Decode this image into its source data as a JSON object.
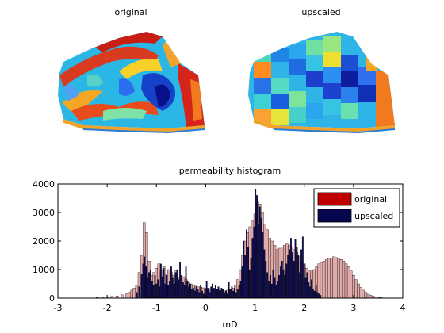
{
  "panels": {
    "left_title": "original",
    "right_title": "upscaled"
  },
  "colors": {
    "original_hist": "#e3aaaa",
    "upscaled_hist": "#0a0a5a",
    "legend_original": "#c00000",
    "legend_upscaled": "#06064e"
  },
  "chart_data": {
    "type": "bar",
    "title": "permeability histogram",
    "xlabel": "mD",
    "ylabel": "",
    "xlim": [
      -3,
      4
    ],
    "ylim": [
      0,
      4000
    ],
    "xticks": [
      "-3",
      "-2",
      "-1",
      "0",
      "1",
      "2",
      "3",
      "4"
    ],
    "yticks": [
      "0",
      "1000",
      "2000",
      "3000",
      "4000"
    ],
    "legend": {
      "position": "top-right",
      "entries": [
        "original",
        "upscaled"
      ]
    },
    "series": [
      {
        "name": "original",
        "points": [
          [
            -2.2,
            20
          ],
          [
            -2.1,
            30
          ],
          [
            -2.0,
            40
          ],
          [
            -1.9,
            60
          ],
          [
            -1.8,
            80
          ],
          [
            -1.7,
            120
          ],
          [
            -1.6,
            150
          ],
          [
            -1.55,
            200
          ],
          [
            -1.5,
            280
          ],
          [
            -1.45,
            350
          ],
          [
            -1.4,
            450
          ],
          [
            -1.35,
            900
          ],
          [
            -1.3,
            1500
          ],
          [
            -1.25,
            2650
          ],
          [
            -1.2,
            2300
          ],
          [
            -1.15,
            1300
          ],
          [
            -1.1,
            800
          ],
          [
            -1.05,
            900
          ],
          [
            -1.0,
            1050
          ],
          [
            -0.95,
            1200
          ],
          [
            -0.9,
            950
          ],
          [
            -0.85,
            1100
          ],
          [
            -0.8,
            850
          ],
          [
            -0.75,
            1000
          ],
          [
            -0.7,
            900
          ],
          [
            -0.65,
            800
          ],
          [
            -0.6,
            950
          ],
          [
            -0.55,
            700
          ],
          [
            -0.5,
            600
          ],
          [
            -0.45,
            750
          ],
          [
            -0.4,
            650
          ],
          [
            -0.35,
            550
          ],
          [
            -0.3,
            500
          ],
          [
            -0.25,
            450
          ],
          [
            -0.2,
            420
          ],
          [
            -0.15,
            400
          ],
          [
            -0.1,
            380
          ],
          [
            -0.05,
            360
          ],
          [
            0.0,
            350
          ],
          [
            0.05,
            340
          ],
          [
            0.1,
            330
          ],
          [
            0.15,
            320
          ],
          [
            0.2,
            300
          ],
          [
            0.25,
            280
          ],
          [
            0.3,
            270
          ],
          [
            0.35,
            260
          ],
          [
            0.4,
            260
          ],
          [
            0.45,
            280
          ],
          [
            0.5,
            300
          ],
          [
            0.55,
            350
          ],
          [
            0.6,
            450
          ],
          [
            0.65,
            650
          ],
          [
            0.7,
            1000
          ],
          [
            0.75,
            1500
          ],
          [
            0.8,
            2000
          ],
          [
            0.85,
            2300
          ],
          [
            0.9,
            2500
          ],
          [
            0.95,
            2700
          ],
          [
            1.0,
            2950
          ],
          [
            1.05,
            3400
          ],
          [
            1.1,
            3300
          ],
          [
            1.15,
            3000
          ],
          [
            1.2,
            2600
          ],
          [
            1.25,
            2400
          ],
          [
            1.3,
            2100
          ],
          [
            1.35,
            2000
          ],
          [
            1.4,
            1850
          ],
          [
            1.45,
            1700
          ],
          [
            1.5,
            1750
          ],
          [
            1.55,
            1800
          ],
          [
            1.6,
            1850
          ],
          [
            1.65,
            1900
          ],
          [
            1.7,
            1850
          ],
          [
            1.75,
            1800
          ],
          [
            1.8,
            1700
          ],
          [
            1.85,
            1600
          ],
          [
            1.9,
            1450
          ],
          [
            1.95,
            1300
          ],
          [
            2.0,
            1200
          ],
          [
            2.05,
            1050
          ],
          [
            2.1,
            950
          ],
          [
            2.15,
            950
          ],
          [
            2.2,
            1000
          ],
          [
            2.25,
            1100
          ],
          [
            2.3,
            1200
          ],
          [
            2.35,
            1250
          ],
          [
            2.4,
            1300
          ],
          [
            2.45,
            1350
          ],
          [
            2.5,
            1400
          ],
          [
            2.55,
            1400
          ],
          [
            2.6,
            1450
          ],
          [
            2.65,
            1420
          ],
          [
            2.7,
            1400
          ],
          [
            2.75,
            1350
          ],
          [
            2.8,
            1300
          ],
          [
            2.85,
            1200
          ],
          [
            2.9,
            1100
          ],
          [
            2.95,
            950
          ],
          [
            3.0,
            800
          ],
          [
            3.05,
            650
          ],
          [
            3.1,
            500
          ],
          [
            3.15,
            380
          ],
          [
            3.2,
            280
          ],
          [
            3.25,
            200
          ],
          [
            3.3,
            140
          ],
          [
            3.35,
            100
          ],
          [
            3.4,
            70
          ],
          [
            3.45,
            50
          ],
          [
            3.5,
            30
          ],
          [
            3.55,
            20
          ],
          [
            3.6,
            10
          ]
        ]
      },
      {
        "name": "upscaled",
        "points": [
          [
            -1.4,
            200
          ],
          [
            -1.35,
            400
          ],
          [
            -1.3,
            850
          ],
          [
            -1.27,
            1200
          ],
          [
            -1.24,
            1450
          ],
          [
            -1.21,
            1100
          ],
          [
            -1.18,
            700
          ],
          [
            -1.15,
            900
          ],
          [
            -1.12,
            1000
          ],
          [
            -1.09,
            600
          ],
          [
            -1.06,
            450
          ],
          [
            -1.03,
            800
          ],
          [
            -1.0,
            500
          ],
          [
            -0.97,
            650
          ],
          [
            -0.94,
            400
          ],
          [
            -0.91,
            1200
          ],
          [
            -0.88,
            750
          ],
          [
            -0.85,
            1050
          ],
          [
            -0.82,
            500
          ],
          [
            -0.79,
            800
          ],
          [
            -0.76,
            450
          ],
          [
            -0.73,
            600
          ],
          [
            -0.7,
            1100
          ],
          [
            -0.67,
            700
          ],
          [
            -0.64,
            500
          ],
          [
            -0.61,
            900
          ],
          [
            -0.58,
            1000
          ],
          [
            -0.55,
            650
          ],
          [
            -0.52,
            1250
          ],
          [
            -0.49,
            800
          ],
          [
            -0.46,
            550
          ],
          [
            -0.43,
            450
          ],
          [
            -0.4,
            1100
          ],
          [
            -0.37,
            600
          ],
          [
            -0.34,
            400
          ],
          [
            -0.31,
            500
          ],
          [
            -0.28,
            300
          ],
          [
            -0.25,
            350
          ],
          [
            -0.22,
            250
          ],
          [
            -0.19,
            400
          ],
          [
            -0.16,
            300
          ],
          [
            -0.13,
            200
          ],
          [
            -0.1,
            450
          ],
          [
            -0.07,
            250
          ],
          [
            -0.04,
            150
          ],
          [
            -0.01,
            300
          ],
          [
            0.02,
            600
          ],
          [
            0.05,
            350
          ],
          [
            0.08,
            200
          ],
          [
            0.11,
            400
          ],
          [
            0.14,
            500
          ],
          [
            0.17,
            350
          ],
          [
            0.2,
            450
          ],
          [
            0.23,
            300
          ],
          [
            0.26,
            400
          ],
          [
            0.29,
            250
          ],
          [
            0.32,
            350
          ],
          [
            0.35,
            300
          ],
          [
            0.38,
            200
          ],
          [
            0.41,
            250
          ],
          [
            0.44,
            150
          ],
          [
            0.47,
            550
          ],
          [
            0.5,
            300
          ],
          [
            0.53,
            400
          ],
          [
            0.56,
            250
          ],
          [
            0.59,
            350
          ],
          [
            0.62,
            200
          ],
          [
            0.65,
            300
          ],
          [
            0.68,
            450
          ],
          [
            0.71,
            600
          ],
          [
            0.74,
            1100
          ],
          [
            0.77,
            2000
          ],
          [
            0.8,
            1500
          ],
          [
            0.83,
            2400
          ],
          [
            0.86,
            1800
          ],
          [
            0.89,
            1000
          ],
          [
            0.92,
            1400
          ],
          [
            0.95,
            2100
          ],
          [
            0.98,
            2500
          ],
          [
            1.01,
            3800
          ],
          [
            1.04,
            3600
          ],
          [
            1.07,
            2600
          ],
          [
            1.1,
            3200
          ],
          [
            1.13,
            2800
          ],
          [
            1.16,
            2300
          ],
          [
            1.19,
            1700
          ],
          [
            1.22,
            1300
          ],
          [
            1.25,
            900
          ],
          [
            1.28,
            600
          ],
          [
            1.31,
            800
          ],
          [
            1.34,
            500
          ],
          [
            1.37,
            1000
          ],
          [
            1.4,
            700
          ],
          [
            1.43,
            450
          ],
          [
            1.46,
            600
          ],
          [
            1.49,
            800
          ],
          [
            1.52,
            1100
          ],
          [
            1.55,
            1300
          ],
          [
            1.58,
            1000
          ],
          [
            1.61,
            800
          ],
          [
            1.64,
            1200
          ],
          [
            1.67,
            1500
          ],
          [
            1.7,
            1700
          ],
          [
            1.73,
            2100
          ],
          [
            1.76,
            1600
          ],
          [
            1.79,
            1300
          ],
          [
            1.82,
            2050
          ],
          [
            1.85,
            1800
          ],
          [
            1.88,
            1500
          ],
          [
            1.91,
            900
          ],
          [
            1.94,
            1700
          ],
          [
            1.97,
            2150
          ],
          [
            2.0,
            1200
          ],
          [
            2.03,
            700
          ],
          [
            2.06,
            900
          ],
          [
            2.09,
            550
          ],
          [
            2.12,
            400
          ],
          [
            2.15,
            650
          ],
          [
            2.18,
            300
          ],
          [
            2.21,
            250
          ],
          [
            2.24,
            450
          ],
          [
            2.27,
            200
          ],
          [
            2.3,
            150
          ],
          [
            2.33,
            100
          ]
        ]
      }
    ]
  }
}
